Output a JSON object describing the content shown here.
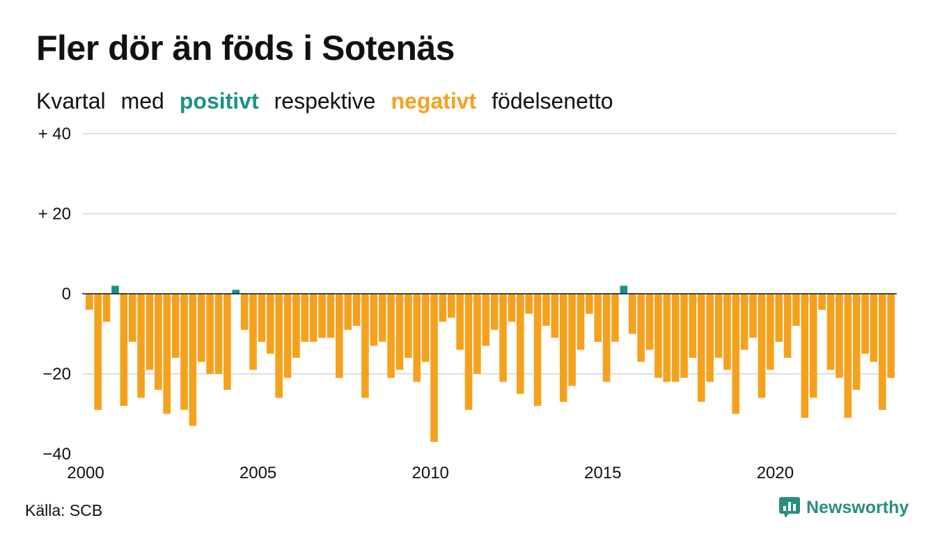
{
  "title": "Fler dör än föds i Sotenäs",
  "subtitle": {
    "w1": "Kvartal",
    "w2": "med",
    "positive": "positivt",
    "w3": "respektive",
    "negative": "negativt",
    "w4": "födelsenetto"
  },
  "source": "Källa: SCB",
  "brand": "Newsworthy",
  "colors": {
    "positive": "#1a9385",
    "negative": "#f6a11e",
    "grid": "#dddddd",
    "zero": "#111111",
    "brand": "#2a8d80"
  },
  "chart_data": {
    "type": "bar",
    "unit": "quarterly",
    "start_year": 2000,
    "ylim": [
      -40,
      40
    ],
    "yticks": [
      {
        "value": 40,
        "label": "+ 40"
      },
      {
        "value": 20,
        "label": "+ 20"
      },
      {
        "value": 0,
        "label": "0"
      },
      {
        "value": -20,
        "label": "−20"
      },
      {
        "value": -40,
        "label": "−40"
      }
    ],
    "xticks": [
      "2000",
      "2005",
      "2010",
      "2015",
      "2020"
    ],
    "values": [
      -4,
      -29,
      -7,
      2,
      -28,
      -12,
      -26,
      -19,
      -24,
      -30,
      -16,
      -29,
      -33,
      -17,
      -20,
      -20,
      -24,
      1,
      -9,
      -19,
      -12,
      -15,
      -26,
      -21,
      -16,
      -12,
      -12,
      -11,
      -11,
      -21,
      -9,
      -8,
      -26,
      -13,
      -12,
      -21,
      -19,
      -16,
      -22,
      -17,
      -37,
      -7,
      -6,
      -14,
      -29,
      -20,
      -13,
      -9,
      -22,
      -7,
      -25,
      -5,
      -28,
      -8,
      -11,
      -27,
      -23,
      -14,
      -5,
      -12,
      -22,
      -12,
      2,
      -10,
      -17,
      -14,
      -21,
      -22,
      -22,
      -21,
      -16,
      -27,
      -22,
      -16,
      -19,
      -30,
      -14,
      -11,
      -26,
      -19,
      -12,
      -16,
      -8,
      -31,
      -26,
      -4,
      -19,
      -21,
      -31,
      -24,
      -15,
      -17,
      -29,
      -21
    ]
  }
}
